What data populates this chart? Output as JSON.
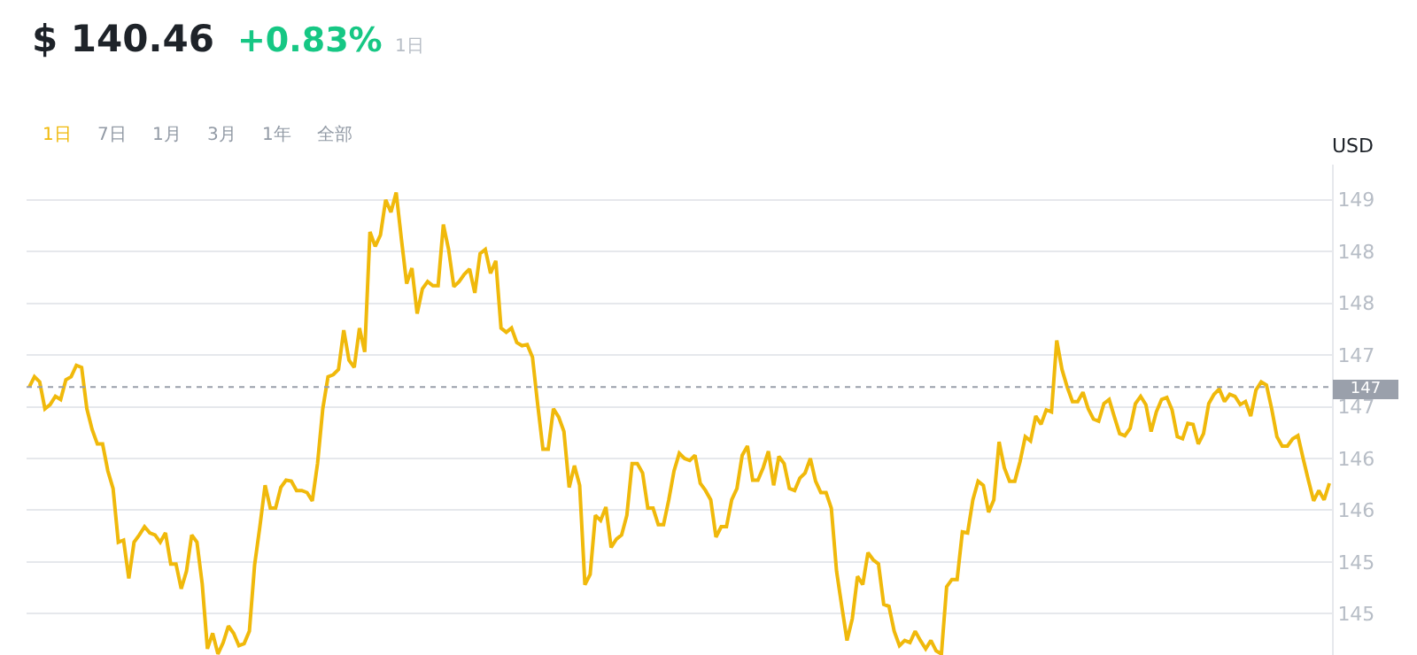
{
  "chart_data": {
    "type": "line",
    "title": "$ 140.46",
    "subtitle": "+0.83%",
    "ylabel": "USD",
    "annotations": [
      "1日",
      "1日",
      "7日",
      "1月",
      "3月",
      "1年",
      "全部"
    ],
    "categories": [
      null,
      null,
      null,
      null,
      null,
      null,
      null,
      null,
      null,
      null,
      null,
      null,
      null,
      null,
      null,
      null,
      null,
      null,
      null,
      null,
      null,
      null,
      null,
      null,
      null,
      null,
      null,
      null,
      null,
      null,
      null,
      null,
      null,
      null,
      null,
      null,
      null,
      null,
      null,
      null,
      null,
      null,
      null,
      null,
      null,
      null,
      null,
      null,
      null,
      null,
      null,
      null,
      null,
      null,
      null,
      null,
      null,
      null,
      null,
      null,
      null,
      null,
      null,
      null,
      null,
      null,
      null,
      null,
      null,
      null,
      null,
      null,
      null,
      null,
      null,
      null,
      null,
      null,
      null,
      null,
      null,
      null,
      null,
      null,
      null,
      null,
      null,
      null,
      null,
      null,
      null,
      null,
      null,
      null,
      null,
      null,
      null,
      null,
      null,
      null,
      null,
      null,
      null,
      null,
      null,
      null,
      null,
      null,
      null,
      null,
      null,
      null,
      null,
      null,
      null,
      null,
      null,
      null,
      null,
      null,
      null,
      null,
      null,
      null,
      null,
      null,
      null,
      null,
      null,
      null,
      null,
      null,
      null,
      null,
      null,
      null,
      null,
      null,
      null,
      null,
      null,
      null,
      null,
      null,
      null,
      null,
      null,
      null,
      null,
      null,
      null,
      null,
      null,
      null,
      null,
      null,
      null,
      null,
      null,
      null,
      null,
      null,
      null,
      null,
      null,
      null,
      null,
      null,
      null,
      null,
      null,
      null,
      null,
      null,
      null,
      null,
      null,
      null,
      null,
      null,
      null,
      null,
      null,
      null,
      null,
      null,
      null,
      null,
      null,
      null,
      null,
      null,
      null,
      null,
      null,
      null,
      null,
      null,
      null,
      null,
      null,
      null,
      null,
      null,
      null,
      null,
      null,
      null,
      null,
      null,
      null,
      null,
      null,
      null,
      null,
      null,
      null,
      null,
      null,
      null,
      null,
      null,
      null,
      null,
      null,
      null,
      null,
      null,
      null,
      null,
      null,
      null,
      null,
      null,
      null,
      null,
      null,
      null,
      null,
      null,
      null,
      null,
      null,
      null,
      null,
      null,
      null,
      null,
      null
    ],
    "series": [
      {
        "color": "#f0b90b",
        "values": [
          147.19,
          147.29,
          147.24,
          146.98,
          147.02,
          147.1,
          147.07,
          147.26,
          147.29,
          147.4,
          147.38,
          146.98,
          146.78,
          146.64,
          146.64,
          146.38,
          146.21,
          145.69,
          145.71,
          145.34,
          145.69,
          145.76,
          145.84,
          145.78,
          145.76,
          145.69,
          145.78,
          145.48,
          145.48,
          145.24,
          145.41,
          145.76,
          145.69,
          145.29,
          144.66,
          144.81,
          144.61,
          144.72,
          144.88,
          144.81,
          144.69,
          144.71,
          144.83,
          145.47,
          145.84,
          146.24,
          146.02,
          146.02,
          146.22,
          146.29,
          146.28,
          146.19,
          146.19,
          146.17,
          146.09,
          146.45,
          146.98,
          147.29,
          147.31,
          147.36,
          147.74,
          147.45,
          147.38,
          147.76,
          147.53,
          148.69,
          148.55,
          148.66,
          149.0,
          148.88,
          149.07,
          148.62,
          148.19,
          148.34,
          147.9,
          148.14,
          148.21,
          148.17,
          148.17,
          148.76,
          148.52,
          148.16,
          148.21,
          148.28,
          148.33,
          148.1,
          148.48,
          148.52,
          148.29,
          148.41,
          147.76,
          147.72,
          147.76,
          147.62,
          147.59,
          147.6,
          147.48,
          147.02,
          146.59,
          146.59,
          146.98,
          146.9,
          146.76,
          146.22,
          146.43,
          146.24,
          145.28,
          145.38,
          145.95,
          145.9,
          146.03,
          145.64,
          145.72,
          145.76,
          145.95,
          146.45,
          146.45,
          146.36,
          146.02,
          146.02,
          145.86,
          145.86,
          146.1,
          146.38,
          146.55,
          146.5,
          146.48,
          146.53,
          146.26,
          146.19,
          146.1,
          145.74,
          145.84,
          145.84,
          146.1,
          146.21,
          146.53,
          146.62,
          146.29,
          146.29,
          146.41,
          146.57,
          146.24,
          146.52,
          146.45,
          146.21,
          146.19,
          146.31,
          146.36,
          146.5,
          146.28,
          146.17,
          146.17,
          146.02,
          145.41,
          145.07,
          144.74,
          144.95,
          145.36,
          145.28,
          145.59,
          145.52,
          145.48,
          145.09,
          145.07,
          144.83,
          144.69,
          144.74,
          144.72,
          144.83,
          144.74,
          144.66,
          144.74,
          144.64,
          144.61,
          145.26,
          145.33,
          145.33,
          145.79,
          145.78,
          146.1,
          146.28,
          146.24,
          145.98,
          146.1,
          146.66,
          146.41,
          146.28,
          146.28,
          146.47,
          146.71,
          146.67,
          146.91,
          146.83,
          146.97,
          146.95,
          147.64,
          147.36,
          147.19,
          147.05,
          147.05,
          147.14,
          146.98,
          146.88,
          146.86,
          147.03,
          147.07,
          146.9,
          146.74,
          146.72,
          146.79,
          147.03,
          147.1,
          147.02,
          146.76,
          146.95,
          147.07,
          147.09,
          146.97,
          146.71,
          146.69,
          146.84,
          146.83,
          146.64,
          146.74,
          147.03,
          147.12,
          147.17,
          147.05,
          147.12,
          147.1,
          147.02,
          147.05,
          146.91,
          147.16,
          147.24,
          147.21,
          146.98,
          146.71,
          146.62,
          146.62,
          146.69,
          146.72,
          146.5,
          146.29,
          146.09,
          146.19,
          146.1,
          146.26
        ]
      }
    ],
    "ylim": [
      144.6,
      149.34
    ],
    "yticks": [
      149,
      {
        "value": 148.5,
        "label": "148"
      },
      148,
      {
        "value": 147.5,
        "label": "147"
      },
      147,
      {
        "value": 146.5,
        "label": "146"
      },
      146,
      {
        "value": 145.5,
        "label": "145"
      },
      145
    ],
    "ref_lines": [
      {
        "axis": "y",
        "value": 147.19,
        "label": "147",
        "color": "#9aa0ab",
        "line_style": "dotted"
      }
    ],
    "grid": "y",
    "legend": false,
    "marker": "none",
    "line_style": "solid",
    "tick_labels": "y"
  }
}
